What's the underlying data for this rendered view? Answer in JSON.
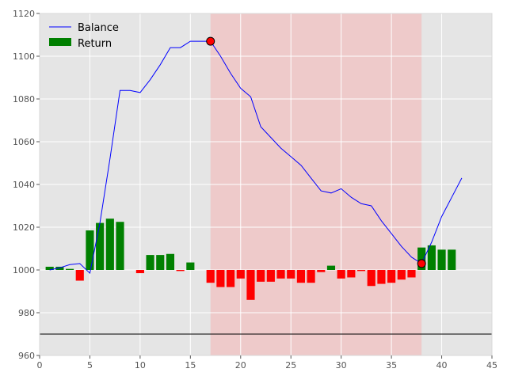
{
  "chart_data": {
    "type": "bar+line",
    "xlim": [
      0,
      45
    ],
    "ylim": [
      960,
      1120
    ],
    "xticks": [
      0,
      5,
      10,
      15,
      20,
      25,
      30,
      35,
      40,
      45
    ],
    "yticks": [
      960,
      980,
      1000,
      1020,
      1040,
      1060,
      1080,
      1100,
      1120
    ],
    "grid": true,
    "legend_position": "top-left",
    "legend": [
      {
        "label": "Balance",
        "kind": "line",
        "color": "#0000ff"
      },
      {
        "label": "Return",
        "kind": "patch",
        "color": "#008000"
      }
    ],
    "colors": {
      "balance": "#0000ff",
      "positive_return": "#008000",
      "negative_return": "#ff0000",
      "drawdown_span": "#ff9999",
      "plot_background": "#e5e5e5",
      "grid": "#ffffff",
      "marker": "#ff0000"
    },
    "baseline": 1000,
    "reference_line": 970,
    "drawdown_span": [
      17,
      38
    ],
    "markers": [
      {
        "x": 17,
        "y": 1107
      },
      {
        "x": 38,
        "y": 1003
      }
    ],
    "balance": {
      "name": "Balance",
      "x": [
        1,
        2,
        3,
        4,
        5,
        6,
        7,
        8,
        9,
        10,
        11,
        12,
        13,
        14,
        15,
        16,
        17,
        18,
        19,
        20,
        21,
        22,
        23,
        24,
        25,
        26,
        27,
        28,
        29,
        30,
        31,
        32,
        33,
        34,
        35,
        36,
        37,
        38,
        39,
        40,
        41,
        42
      ],
      "y": [
        1000,
        1001,
        1002.5,
        1003,
        998.5,
        1022,
        1052,
        1084,
        1084,
        1083,
        1089,
        1096,
        1104,
        1104,
        1107,
        1107,
        1107,
        1100,
        1092,
        1085,
        1081,
        1067,
        1062,
        1057,
        1053,
        1049,
        1043,
        1037,
        1036,
        1038,
        1034,
        1031,
        1030,
        1023,
        1017,
        1011,
        1006,
        1003,
        1013,
        1025,
        1034,
        1043
      ]
    },
    "returns": {
      "name": "Return",
      "x": [
        1,
        2,
        3,
        4,
        5,
        6,
        7,
        8,
        9,
        10,
        11,
        12,
        13,
        14,
        15,
        16,
        17,
        18,
        19,
        20,
        21,
        22,
        23,
        24,
        25,
        26,
        27,
        28,
        29,
        30,
        31,
        32,
        33,
        34,
        35,
        36,
        37,
        38,
        39,
        40,
        41
      ],
      "values": [
        1.5,
        1.5,
        0.5,
        -5,
        18.5,
        22,
        24,
        22.5,
        0,
        -1.5,
        7,
        7,
        7.5,
        -0.5,
        3.5,
        0,
        -6,
        -8,
        -8,
        -4,
        -14,
        -5.5,
        -5.5,
        -4,
        -4,
        -6,
        -6,
        -1,
        2,
        -4,
        -3.5,
        -0.5,
        -7.5,
        -6.5,
        -6,
        -4.5,
        -3.5,
        10.5,
        11.5,
        9.5,
        9.5
      ]
    }
  }
}
